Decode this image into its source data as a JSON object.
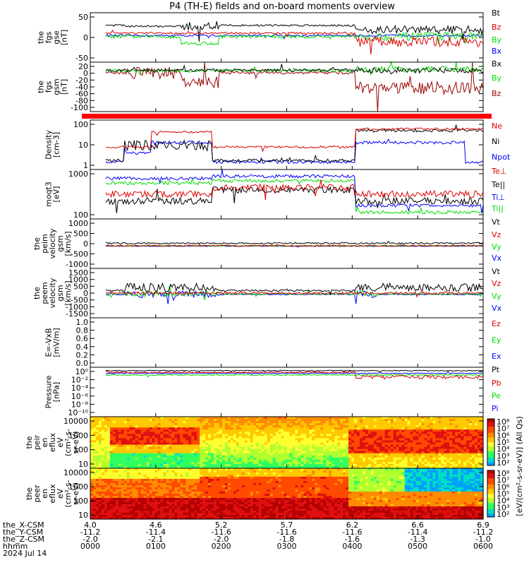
{
  "title": "P4 (TH-E) fields and on-board moments overview",
  "colors": {
    "black": "#000000",
    "red": "#dd0000",
    "dred": "#990000",
    "green": "#00dd00",
    "blue": "#0000ff",
    "gray": "#888888"
  },
  "time_axis": {
    "hhmm_ticks": [
      "0000",
      "0100",
      "0200",
      "0300",
      "0400",
      "0500",
      "0600"
    ],
    "rows": [
      {
        "label": "the_X-CSM",
        "values": [
          "4.0",
          "4.6",
          "5.2",
          "5.7",
          "6.2",
          "6.6",
          "6.9"
        ]
      },
      {
        "label": "the_Y-CSM",
        "values": [
          "-11.2",
          "-11.4",
          "-11.6",
          "-11.6",
          "-11.6",
          "-11.4",
          "-11.2"
        ]
      },
      {
        "label": "the_Z-CSM",
        "values": [
          "-2.0",
          "-2.1",
          "-2.0",
          "-1.8",
          "-1.6",
          "-1.3",
          "-1.0"
        ]
      },
      {
        "label": "hhmm",
        "values": [
          "0000",
          "0100",
          "0200",
          "0300",
          "0400",
          "0500",
          "0600"
        ]
      }
    ],
    "date": "2024 Jul 14"
  },
  "chart_data": [
    {
      "type": "line",
      "panel": "fgs-gse",
      "ylabel": [
        "the",
        "fgs",
        "gse",
        "[nT]"
      ],
      "yticks": [
        "50",
        "0",
        "-50"
      ],
      "ylim": [
        -70,
        75
      ],
      "series": [
        {
          "name": "Bt",
          "color": "#000000"
        },
        {
          "name": "Bz",
          "color": "#dd0000"
        },
        {
          "name": "By",
          "color": "#00dd00"
        },
        {
          "name": "Bx",
          "color": "#0000ff"
        }
      ]
    },
    {
      "type": "line",
      "panel": "fgs-gsm",
      "ylabel": [
        "the",
        "fgs",
        "gsm",
        "[nT]"
      ],
      "yticks": [
        "20",
        "0",
        "-20",
        "-40",
        "-60",
        "-80",
        "-100"
      ],
      "ylim": [
        -112,
        28
      ],
      "series": [
        {
          "name": "Bx",
          "color": "#000000"
        },
        {
          "name": "By",
          "color": "#00dd00"
        },
        {
          "name": "Bz",
          "color": "#990000"
        }
      ]
    },
    {
      "type": "bar",
      "panel": "flag",
      "color": "#ff0000"
    },
    {
      "type": "line",
      "panel": "density",
      "ylabel": [
        "Density",
        "[cm-3]"
      ],
      "yticks": [
        "100",
        "10",
        "1"
      ],
      "log": true,
      "series": [
        {
          "name": "Ne",
          "color": "#dd0000"
        },
        {
          "name": "Ni",
          "color": "#000000"
        },
        {
          "name": "Npot",
          "color": "#0000ff"
        }
      ]
    },
    {
      "type": "line",
      "panel": "temperature",
      "ylabel": [
        "moqt3",
        "[eV]"
      ],
      "yticks": [
        "1000",
        "100"
      ],
      "log": true,
      "series": [
        {
          "name": "Te⊥",
          "color": "#dd0000"
        },
        {
          "name": "Te||",
          "color": "#000000"
        },
        {
          "name": "Ti⊥",
          "color": "#0000ff"
        },
        {
          "name": "Ti||",
          "color": "#00dd00"
        }
      ]
    },
    {
      "type": "line",
      "panel": "peim-velocity",
      "ylabel": [
        "the",
        "peim",
        "velocity",
        "gsm",
        "[km/s]"
      ],
      "yticks": [
        "1000",
        "500",
        "0",
        "-500",
        "-1000"
      ],
      "ylim": [
        -1100,
        1300
      ],
      "series": [
        {
          "name": "Vt",
          "color": "#000000"
        },
        {
          "name": "Vz",
          "color": "#dd0000"
        },
        {
          "name": "Vy",
          "color": "#00dd00"
        },
        {
          "name": "Vx",
          "color": "#0000ff"
        }
      ]
    },
    {
      "type": "line",
      "panel": "peem-velocity",
      "ylabel": [
        "the",
        "peem",
        "velocity",
        "gsm",
        "[km/s]"
      ],
      "yticks": [
        "1500",
        "1000",
        "500",
        "0",
        "-500",
        "-1000",
        "-1500"
      ],
      "ylim": [
        -1500,
        1500
      ],
      "series": [
        {
          "name": "Vt",
          "color": "#000000"
        },
        {
          "name": "Vz",
          "color": "#dd0000"
        },
        {
          "name": "Vy",
          "color": "#00dd00"
        },
        {
          "name": "Vx",
          "color": "#0000ff"
        }
      ]
    },
    {
      "type": "line",
      "panel": "efield",
      "ylabel": [
        "E=-VxB",
        "[mV/m]"
      ],
      "yticks": [
        "1.0",
        "0.8",
        "0.6",
        "0.4",
        "0.2",
        "0.0"
      ],
      "ylim": [
        0,
        1
      ],
      "series": [
        {
          "name": "Ez",
          "color": "#dd0000"
        },
        {
          "name": "Ey",
          "color": "#00dd00"
        },
        {
          "name": "Ex",
          "color": "#0000ff"
        }
      ]
    },
    {
      "type": "line",
      "panel": "pressure",
      "ylabel": [
        "Pressure",
        "[nPa]"
      ],
      "yticks": [
        "10⁰",
        "10⁻²",
        "10⁻⁴",
        "10⁻⁶",
        "10⁻⁸",
        "10⁻¹⁰"
      ],
      "log": true,
      "series": [
        {
          "name": "Pt",
          "color": "#000000"
        },
        {
          "name": "Pb",
          "color": "#dd0000"
        },
        {
          "name": "Pe",
          "color": "#00dd00"
        },
        {
          "name": "Pi",
          "color": "#0000ff"
        }
      ]
    },
    {
      "type": "heatmap",
      "panel": "peir",
      "ylabel": [
        "the",
        "peir",
        "en",
        "eflux",
        "eV",
        "(cm²-s-",
        "sr-eV)"
      ],
      "yticks": [
        "10000",
        "1000",
        "100",
        "10"
      ]
    },
    {
      "type": "heatmap",
      "panel": "peer",
      "ylabel": [
        "the",
        "peer",
        "en",
        "eflux",
        "eV",
        "(cm²-s-",
        "sr-eV)"
      ],
      "yticks": [
        "10000",
        "1000",
        "100",
        "10"
      ]
    }
  ],
  "colorbar": {
    "top_ticks": [
      "10⁸",
      "10⁷",
      "10⁶",
      "10⁵",
      "10⁴",
      "10³",
      "10²"
    ],
    "bottom_ticks": [
      "10⁸",
      "10⁷",
      "10⁶",
      "10⁵",
      "10⁴",
      "10³",
      "10²"
    ],
    "label": "[eV/(cm²-s-sr-eV)] (All Qs)"
  }
}
